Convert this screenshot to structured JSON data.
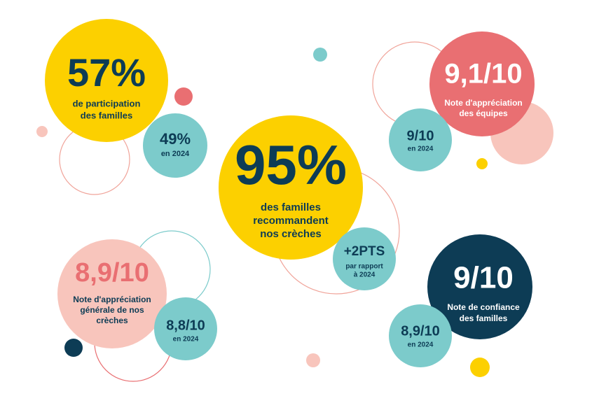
{
  "stats": [
    {
      "value": "57%",
      "label": [
        "de participation",
        "des familles"
      ],
      "compare": {
        "value": "49%",
        "note": [
          "en 2024"
        ]
      }
    },
    {
      "value": "9,1/10",
      "label": [
        "Note d'appréciation",
        "des équipes"
      ],
      "compare": {
        "value": "9/10",
        "note": [
          "en 2024"
        ]
      }
    },
    {
      "value": "95%",
      "label": [
        "des familles",
        "recommandent",
        "nos crèches"
      ],
      "compare": {
        "value": "+2PTS",
        "note": [
          "par rapport",
          "à 2024"
        ]
      }
    },
    {
      "value": "8,9/10",
      "label": [
        "Note d'appréciation",
        "générale de nos",
        "crèches"
      ],
      "compare": {
        "value": "8,8/10",
        "note": [
          "en 2024"
        ]
      }
    },
    {
      "value": "9/10",
      "label": [
        "Note de confiance",
        "des familles"
      ],
      "compare": {
        "value": "8,9/10",
        "note": [
          "en 2024"
        ]
      }
    }
  ]
}
